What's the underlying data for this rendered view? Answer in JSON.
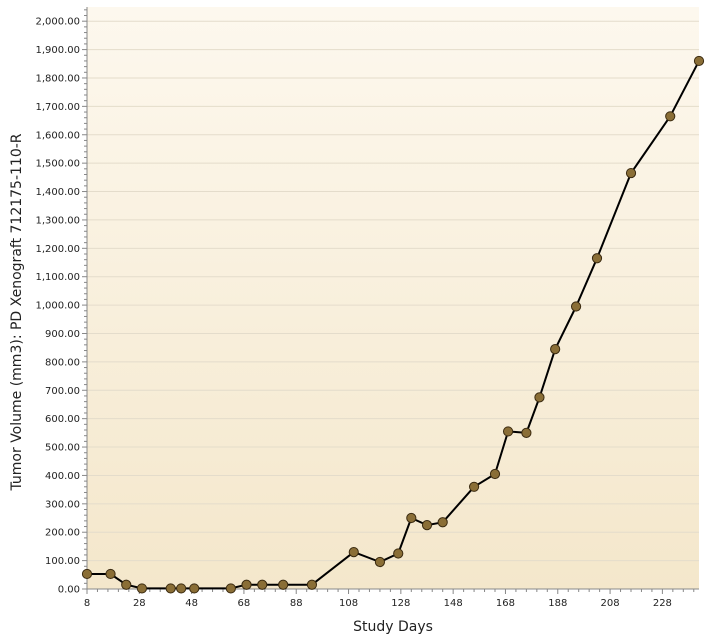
{
  "chart_data": {
    "type": "line",
    "title": "",
    "xlabel": "Study Days",
    "ylabel": "Tumor Volume (mm3): PD Xenograft 712175-110-R",
    "xlim": [
      8,
      242
    ],
    "ylim": [
      0,
      2050
    ],
    "x_ticks": [
      8,
      28,
      48,
      68,
      88,
      108,
      128,
      148,
      168,
      188,
      208,
      228
    ],
    "x_tick_labels": [
      "8",
      "28",
      "48",
      "68",
      "88",
      "108",
      "128",
      "148",
      "168",
      "188",
      "208",
      "228"
    ],
    "y_ticks": [
      0,
      100,
      200,
      300,
      400,
      500,
      600,
      700,
      800,
      900,
      1000,
      1100,
      1200,
      1300,
      1400,
      1500,
      1600,
      1700,
      1800,
      1900,
      2000
    ],
    "y_tick_labels": [
      "0.00",
      "100.00",
      "200.00",
      "300.00",
      "400.00",
      "500.00",
      "600.00",
      "700.00",
      "800.00",
      "900.00",
      "1,000.00",
      "1,100.00",
      "1,200.00",
      "1,300.00",
      "1,400.00",
      "1,500.00",
      "1,600.00",
      "1,700.00",
      "1,800.00",
      "1,900.00",
      "2,000.00"
    ],
    "grid": true,
    "legend": "none",
    "colors": {
      "line": "#000000",
      "marker_fill": "#8a6e36",
      "marker_stroke": "#3a2a10",
      "plot_bg_top": "#fdf8ee",
      "plot_bg_bottom": "#f4e7cb",
      "grid": "#e4dccb",
      "axis": "#888888"
    },
    "series": [
      {
        "x": [
          8,
          17,
          23,
          29,
          40,
          44,
          49,
          63,
          69,
          75,
          83,
          94,
          110,
          120,
          127,
          132,
          138,
          144,
          156,
          164,
          169,
          176,
          181,
          187,
          195,
          203,
          216,
          231,
          242
        ],
        "y": [
          53,
          53,
          15,
          2,
          2,
          2,
          2,
          2,
          15,
          15,
          15,
          15,
          130,
          95,
          125,
          250,
          225,
          235,
          360,
          405,
          555,
          550,
          675,
          845,
          995,
          1165,
          1465,
          1665,
          1860
        ]
      }
    ]
  }
}
